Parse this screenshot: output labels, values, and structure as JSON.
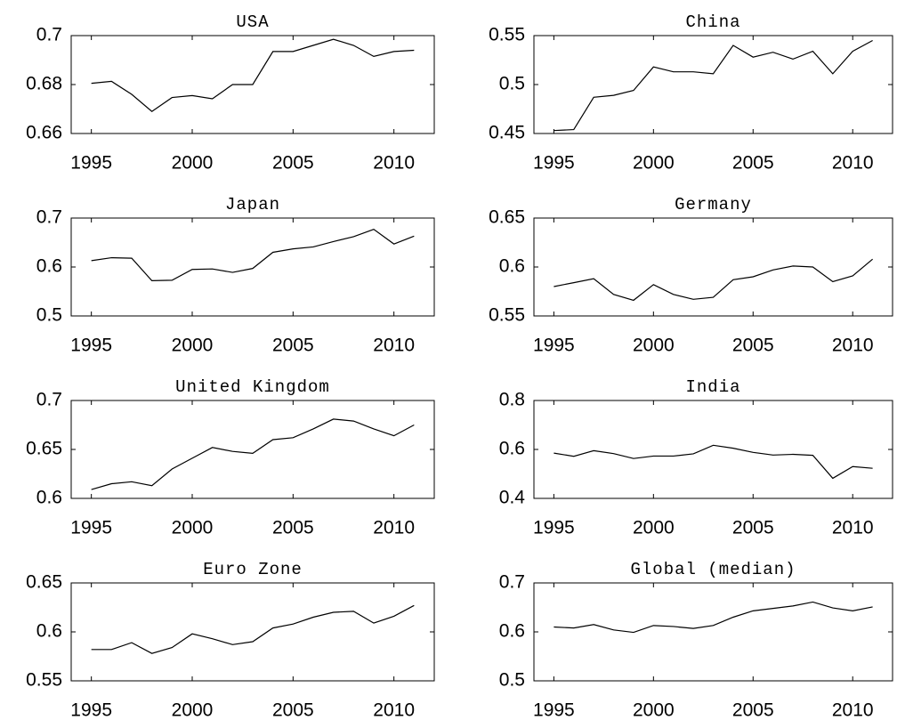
{
  "chart_data": [
    {
      "type": "line",
      "title": "USA",
      "x": [
        1995,
        1996,
        1997,
        1998,
        1999,
        2000,
        2001,
        2002,
        2003,
        2004,
        2005,
        2006,
        2007,
        2008,
        2009,
        2010,
        2011
      ],
      "values": [
        0.6805,
        0.6813,
        0.676,
        0.669,
        0.6747,
        0.6755,
        0.6742,
        0.68,
        0.68,
        0.6935,
        0.6935,
        0.696,
        0.6985,
        0.696,
        0.6915,
        0.6935,
        0.694
      ],
      "color": "#000000",
      "xlim": [
        1994,
        2012
      ],
      "xticks": [
        1995,
        2000,
        2005,
        2010
      ],
      "ylim": [
        0.66,
        0.7
      ],
      "yticks": [
        0.66,
        0.68,
        0.7
      ]
    },
    {
      "type": "line",
      "title": "China",
      "x": [
        1995,
        1996,
        1997,
        1998,
        1999,
        2000,
        2001,
        2002,
        2003,
        2004,
        2005,
        2006,
        2007,
        2008,
        2009,
        2010,
        2011
      ],
      "values": [
        0.453,
        0.454,
        0.487,
        0.489,
        0.494,
        0.518,
        0.513,
        0.513,
        0.511,
        0.54,
        0.528,
        0.533,
        0.526,
        0.534,
        0.511,
        0.534,
        0.545
      ],
      "color": "#000000",
      "xlim": [
        1994,
        2012
      ],
      "xticks": [
        1995,
        2000,
        2005,
        2010
      ],
      "ylim": [
        0.45,
        0.55
      ],
      "yticks": [
        0.45,
        0.5,
        0.55
      ]
    },
    {
      "type": "line",
      "title": "Japan",
      "x": [
        1995,
        1996,
        1997,
        1998,
        1999,
        2000,
        2001,
        2002,
        2003,
        2004,
        2005,
        2006,
        2007,
        2008,
        2009,
        2010,
        2011
      ],
      "values": [
        0.613,
        0.619,
        0.618,
        0.572,
        0.573,
        0.595,
        0.596,
        0.589,
        0.597,
        0.63,
        0.637,
        0.641,
        0.652,
        0.662,
        0.677,
        0.647,
        0.663
      ],
      "color": "#000000",
      "xlim": [
        1994,
        2012
      ],
      "xticks": [
        1995,
        2000,
        2005,
        2010
      ],
      "ylim": [
        0.5,
        0.7
      ],
      "yticks": [
        0.5,
        0.6,
        0.7
      ]
    },
    {
      "type": "line",
      "title": "Germany",
      "x": [
        1995,
        1996,
        1997,
        1998,
        1999,
        2000,
        2001,
        2002,
        2003,
        2004,
        2005,
        2006,
        2007,
        2008,
        2009,
        2010,
        2011
      ],
      "values": [
        0.58,
        0.584,
        0.588,
        0.572,
        0.566,
        0.582,
        0.572,
        0.567,
        0.569,
        0.587,
        0.59,
        0.597,
        0.601,
        0.6,
        0.585,
        0.591,
        0.608
      ],
      "color": "#000000",
      "xlim": [
        1994,
        2012
      ],
      "xticks": [
        1995,
        2000,
        2005,
        2010
      ],
      "ylim": [
        0.55,
        0.65
      ],
      "yticks": [
        0.55,
        0.6,
        0.65
      ]
    },
    {
      "type": "line",
      "title": "United Kingdom",
      "x": [
        1995,
        1996,
        1997,
        1998,
        1999,
        2000,
        2001,
        2002,
        2003,
        2004,
        2005,
        2006,
        2007,
        2008,
        2009,
        2010,
        2011
      ],
      "values": [
        0.609,
        0.615,
        0.617,
        0.613,
        0.63,
        0.641,
        0.652,
        0.648,
        0.646,
        0.66,
        0.662,
        0.671,
        0.681,
        0.679,
        0.671,
        0.664,
        0.675
      ],
      "color": "#000000",
      "xlim": [
        1994,
        2012
      ],
      "xticks": [
        1995,
        2000,
        2005,
        2010
      ],
      "ylim": [
        0.6,
        0.7
      ],
      "yticks": [
        0.6,
        0.65,
        0.7
      ]
    },
    {
      "type": "line",
      "title": "India",
      "x": [
        1995,
        1996,
        1997,
        1998,
        1999,
        2000,
        2001,
        2002,
        2003,
        2004,
        2005,
        2006,
        2007,
        2008,
        2009,
        2010,
        2011
      ],
      "values": [
        0.585,
        0.572,
        0.595,
        0.583,
        0.563,
        0.573,
        0.573,
        0.582,
        0.617,
        0.605,
        0.588,
        0.577,
        0.58,
        0.576,
        0.482,
        0.53,
        0.523
      ],
      "color": "#000000",
      "xlim": [
        1994,
        2012
      ],
      "xticks": [
        1995,
        2000,
        2005,
        2010
      ],
      "ylim": [
        0.4,
        0.8
      ],
      "yticks": [
        0.4,
        0.6,
        0.8
      ]
    },
    {
      "type": "line",
      "title": "Euro Zone",
      "x": [
        1995,
        1996,
        1997,
        1998,
        1999,
        2000,
        2001,
        2002,
        2003,
        2004,
        2005,
        2006,
        2007,
        2008,
        2009,
        2010,
        2011
      ],
      "values": [
        0.582,
        0.582,
        0.589,
        0.578,
        0.584,
        0.598,
        0.593,
        0.587,
        0.59,
        0.604,
        0.608,
        0.615,
        0.62,
        0.621,
        0.609,
        0.616,
        0.627
      ],
      "color": "#000000",
      "xlim": [
        1994,
        2012
      ],
      "xticks": [
        1995,
        2000,
        2005,
        2010
      ],
      "ylim": [
        0.55,
        0.65
      ],
      "yticks": [
        0.55,
        0.6,
        0.65
      ]
    },
    {
      "type": "line",
      "title": "Global (median)",
      "x": [
        1995,
        1996,
        1997,
        1998,
        1999,
        2000,
        2001,
        2002,
        2003,
        2004,
        2005,
        2006,
        2007,
        2008,
        2009,
        2010,
        2011
      ],
      "values": [
        0.61,
        0.608,
        0.615,
        0.604,
        0.599,
        0.613,
        0.611,
        0.607,
        0.613,
        0.63,
        0.643,
        0.648,
        0.653,
        0.661,
        0.649,
        0.643,
        0.651
      ],
      "color": "#000000",
      "xlim": [
        1994,
        2012
      ],
      "xticks": [
        1995,
        2000,
        2005,
        2010
      ],
      "ylim": [
        0.5,
        0.7
      ],
      "yticks": [
        0.5,
        0.6,
        0.7
      ]
    }
  ]
}
